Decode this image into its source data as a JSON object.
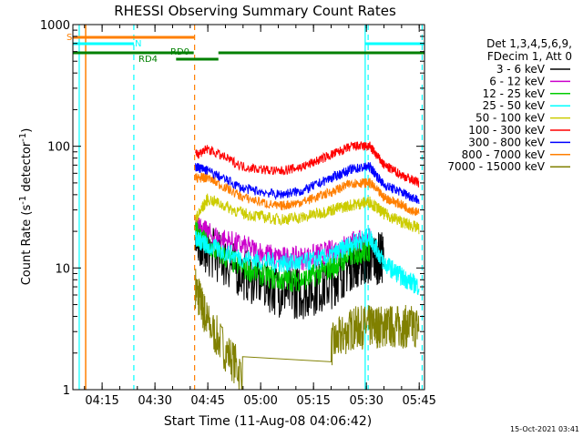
{
  "chart_data": {
    "type": "line",
    "title": "RHESSI Observing Summary Count Rates",
    "xlabel": "Start Time (11-Aug-08 04:06:42)",
    "ylabel": "Count Rate (s⁻¹ detector⁻¹)",
    "ylabel_parts": {
      "a": "Count Rate (s",
      "sup1": "-1",
      "b": " detector",
      "sup2": "-1",
      "c": ")"
    },
    "ylog": true,
    "xlim": [
      "04:06:42",
      "05:46:30"
    ],
    "ylim": [
      1,
      1000
    ],
    "x_ticks": [
      "04:15",
      "04:30",
      "04:45",
      "05:00",
      "05:15",
      "05:30",
      "05:45"
    ],
    "y_ticks": [
      {
        "value": 1,
        "label": "1"
      },
      {
        "value": 10,
        "label": "10"
      },
      {
        "value": 100,
        "label": "100"
      },
      {
        "value": 1000,
        "label": "1000"
      }
    ],
    "legend": {
      "header1": "Det 1,3,4,5,6,9,",
      "header2": "FDecim 1, Att 0",
      "placement": "right"
    },
    "x_knots": [
      "04:41:30",
      "04:45:00",
      "04:55:00",
      "05:05:00",
      "05:12:00",
      "05:20:00",
      "05:26:00",
      "05:31:00",
      "05:35:00",
      "05:40:00",
      "05:45:00"
    ],
    "series": [
      {
        "name": "3 - 6 keV",
        "color": "#000000",
        "values": [
          18,
          14,
          9,
          6.5,
          6.2,
          7.5,
          11,
          12,
          12,
          null,
          null
        ]
      },
      {
        "name": "6 - 12 keV",
        "color": "#cc00cc",
        "values": [
          22,
          19,
          15,
          12,
          12,
          13.5,
          16,
          17,
          null,
          null,
          null
        ]
      },
      {
        "name": "12 - 25 keV",
        "color": "#00cc00",
        "values": [
          20,
          15,
          10,
          8,
          8,
          10,
          13,
          14,
          null,
          null,
          null
        ]
      },
      {
        "name": "25 - 50 keV",
        "color": "#00ffff",
        "values": [
          18,
          15,
          12,
          11,
          11,
          12.5,
          16,
          18,
          11,
          8.5,
          7
        ]
      },
      {
        "name": "50 - 100 keV",
        "color": "#cccc00",
        "values": [
          25,
          37,
          28,
          25,
          26,
          30,
          33,
          35,
          28,
          24,
          21
        ]
      },
      {
        "name": "100 - 300 keV",
        "color": "#ff0000",
        "values": [
          85,
          95,
          68,
          62,
          68,
          85,
          100,
          100,
          70,
          58,
          50
        ]
      },
      {
        "name": "300 - 800 keV",
        "color": "#0000ff",
        "values": [
          68,
          63,
          45,
          40,
          43,
          55,
          65,
          68,
          48,
          42,
          36
        ]
      },
      {
        "name": "800 - 7000 keV",
        "color": "#ff7f00",
        "values": [
          55,
          55,
          38,
          32,
          35,
          42,
          50,
          50,
          38,
          33,
          28
        ]
      },
      {
        "name": "7000 - 15000 keV",
        "color": "#808000",
        "values": [
          7,
          3.5,
          1.3,
          null,
          null,
          2.3,
          3.2,
          3.3,
          3.3,
          3.3,
          3.3
        ]
      }
    ],
    "flag_labels": [
      {
        "label": "S",
        "color": "#ff7f00"
      },
      {
        "label": "N",
        "color": "#00ffff"
      },
      {
        "label": "RD0",
        "color": "#008000"
      },
      {
        "label": "RD4",
        "color": "#008000"
      }
    ],
    "footer": "15-Oct-2021 03:41"
  }
}
